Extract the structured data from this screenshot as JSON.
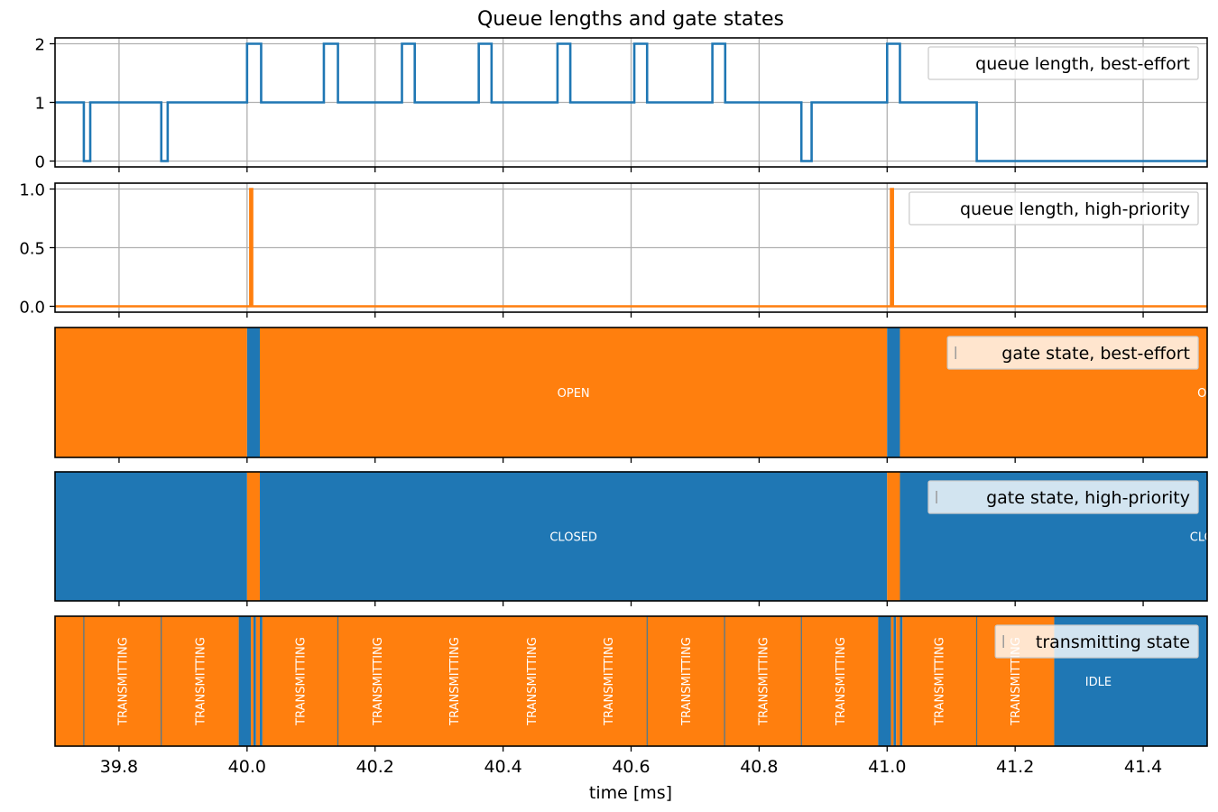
{
  "figure": {
    "title": "Queue lengths and gate states",
    "xlabel": "time [ms]",
    "xlim": [
      39.7,
      41.5
    ],
    "xticks": [
      39.8,
      40.0,
      40.2,
      40.4,
      40.6,
      40.8,
      41.0,
      41.2,
      41.4
    ],
    "xtick_labels": [
      "39.8",
      "40.0",
      "40.2",
      "40.4",
      "40.6",
      "40.8",
      "41.0",
      "41.2",
      "41.4"
    ]
  },
  "colors": {
    "blue": "#1f77b4",
    "orange": "#ff7f0e",
    "grid": "#b0b0b0",
    "axis": "#000000"
  },
  "chart_data": [
    {
      "type": "line",
      "step": true,
      "legend": "queue length, best-effort",
      "legend_loc": "upper right",
      "color": "#1f77b4",
      "ylim": [
        -0.1,
        2.1
      ],
      "yticks": [
        0,
        1,
        2
      ],
      "ytick_labels": [
        "0",
        "1",
        "2"
      ],
      "grid": true,
      "x": [
        39.7,
        39.745,
        39.755,
        39.866,
        39.876,
        39.988,
        40.0,
        40.022,
        40.12,
        40.142,
        40.242,
        40.262,
        40.362,
        40.382,
        40.485,
        40.505,
        40.605,
        40.625,
        40.727,
        40.747,
        40.866,
        40.882,
        41.0,
        41.02,
        41.14,
        41.5
      ],
      "y": [
        1,
        0,
        1,
        0,
        1,
        1,
        2,
        1,
        2,
        1,
        2,
        1,
        2,
        1,
        2,
        1,
        2,
        1,
        2,
        1,
        0,
        1,
        2,
        1,
        0,
        0
      ]
    },
    {
      "type": "line",
      "step": true,
      "legend": "queue length, high-priority",
      "legend_loc": "upper right",
      "color": "#ff7f0e",
      "ylim": [
        -0.05,
        1.05
      ],
      "yticks": [
        0,
        0.5,
        1.0
      ],
      "ytick_labels": [
        "0.0",
        "0.5",
        "1.0"
      ],
      "grid": true,
      "x": [
        39.7,
        40.005,
        40.008,
        41.006,
        41.009,
        41.5
      ],
      "y": [
        0,
        1,
        0,
        1,
        0,
        0
      ]
    },
    {
      "type": "timeline",
      "legend": "gate state, best-effort",
      "legend_loc": "upper right",
      "segments": [
        {
          "start": 39.7,
          "end": 40.0,
          "state": "OPEN",
          "color": "#ff7f0e"
        },
        {
          "start": 40.0,
          "end": 40.02,
          "state": "CLOSED",
          "color": "#1f77b4"
        },
        {
          "start": 40.02,
          "end": 41.0,
          "state": "OPEN",
          "color": "#ff7f0e"
        },
        {
          "start": 41.0,
          "end": 41.02,
          "state": "CLOSED",
          "color": "#1f77b4"
        },
        {
          "start": 41.02,
          "end": 41.5,
          "state": "OPEN",
          "color": "#ff7f0e"
        }
      ],
      "labels": [
        {
          "x": 40.51,
          "text": "OPEN",
          "rotate": false
        },
        {
          "x": 41.51,
          "text": "OPEN",
          "rotate": false
        }
      ]
    },
    {
      "type": "timeline",
      "legend": "gate state, high-priority",
      "legend_loc": "upper right",
      "segments": [
        {
          "start": 39.7,
          "end": 40.0,
          "state": "CLOSED",
          "color": "#1f77b4"
        },
        {
          "start": 40.0,
          "end": 40.02,
          "state": "OPEN",
          "color": "#ff7f0e"
        },
        {
          "start": 40.02,
          "end": 41.0,
          "state": "CLOSED",
          "color": "#1f77b4"
        },
        {
          "start": 41.0,
          "end": 41.02,
          "state": "OPEN",
          "color": "#ff7f0e"
        },
        {
          "start": 41.02,
          "end": 41.5,
          "state": "CLOSED",
          "color": "#1f77b4"
        }
      ],
      "labels": [
        {
          "x": 40.51,
          "text": "CLOSED",
          "rotate": false
        },
        {
          "x": 41.51,
          "text": "CLOSED",
          "rotate": false
        }
      ]
    },
    {
      "type": "timeline",
      "legend": "transmitting state",
      "legend_loc": "upper right",
      "segments": [
        {
          "start": 39.7,
          "end": 39.745,
          "state": "TRANSMITTING",
          "color": "#ff7f0e"
        },
        {
          "start": 39.745,
          "end": 39.866,
          "state": "TRANSMITTING",
          "color": "#ff7f0e"
        },
        {
          "start": 39.866,
          "end": 39.987,
          "state": "TRANSMITTING",
          "color": "#ff7f0e"
        },
        {
          "start": 39.987,
          "end": 40.006,
          "state": "IDLE",
          "color": "#1f77b4"
        },
        {
          "start": 40.006,
          "end": 40.01,
          "state": "TRANSMITTING",
          "color": "#ff7f0e"
        },
        {
          "start": 40.01,
          "end": 40.014,
          "state": "IDLE",
          "color": "#1f77b4"
        },
        {
          "start": 40.014,
          "end": 40.02,
          "state": "TRANSMITTING",
          "color": "#ff7f0e"
        },
        {
          "start": 40.02,
          "end": 40.024,
          "state": "IDLE",
          "color": "#1f77b4"
        },
        {
          "start": 40.024,
          "end": 40.142,
          "state": "TRANSMITTING",
          "color": "#ff7f0e"
        },
        {
          "start": 40.142,
          "end": 40.625,
          "state": "TRANSMITTING",
          "color": "#ff7f0e"
        },
        {
          "start": 40.625,
          "end": 40.746,
          "state": "TRANSMITTING",
          "color": "#ff7f0e"
        },
        {
          "start": 40.746,
          "end": 40.866,
          "state": "TRANSMITTING",
          "color": "#ff7f0e"
        },
        {
          "start": 40.866,
          "end": 40.986,
          "state": "TRANSMITTING",
          "color": "#ff7f0e"
        },
        {
          "start": 40.986,
          "end": 41.006,
          "state": "IDLE",
          "color": "#1f77b4"
        },
        {
          "start": 41.006,
          "end": 41.01,
          "state": "TRANSMITTING",
          "color": "#ff7f0e"
        },
        {
          "start": 41.01,
          "end": 41.014,
          "state": "IDLE",
          "color": "#1f77b4"
        },
        {
          "start": 41.014,
          "end": 41.02,
          "state": "TRANSMITTING",
          "color": "#ff7f0e"
        },
        {
          "start": 41.02,
          "end": 41.024,
          "state": "IDLE",
          "color": "#1f77b4"
        },
        {
          "start": 41.024,
          "end": 41.14,
          "state": "TRANSMITTING",
          "color": "#ff7f0e"
        },
        {
          "start": 41.14,
          "end": 41.261,
          "state": "TRANSMITTING",
          "color": "#ff7f0e"
        },
        {
          "start": 41.261,
          "end": 41.5,
          "state": "IDLE",
          "color": "#1f77b4"
        }
      ],
      "boundaries": [
        39.745,
        39.866,
        40.142,
        40.625,
        40.746,
        40.866,
        41.14
      ],
      "labels": [
        {
          "x": 39.805,
          "text": "TRANSMITTING",
          "rotate": true
        },
        {
          "x": 39.926,
          "text": "TRANSMITTING",
          "rotate": true
        },
        {
          "x": 40.083,
          "text": "TRANSMITTING",
          "rotate": true
        },
        {
          "x": 40.203,
          "text": "TRANSMITTING",
          "rotate": true
        },
        {
          "x": 40.323,
          "text": "TRANSMITTING",
          "rotate": true
        },
        {
          "x": 40.444,
          "text": "TRANSMITTING",
          "rotate": true
        },
        {
          "x": 40.564,
          "text": "TRANSMITTING",
          "rotate": true
        },
        {
          "x": 40.685,
          "text": "TRANSMITTING",
          "rotate": true
        },
        {
          "x": 40.806,
          "text": "TRANSMITTING",
          "rotate": true
        },
        {
          "x": 40.926,
          "text": "TRANSMITTING",
          "rotate": true
        },
        {
          "x": 41.081,
          "text": "TRANSMITTING",
          "rotate": true
        },
        {
          "x": 41.2,
          "text": "TRANSMITTING",
          "rotate": true
        },
        {
          "x": 41.33,
          "text": "IDLE",
          "rotate": false
        }
      ]
    }
  ]
}
